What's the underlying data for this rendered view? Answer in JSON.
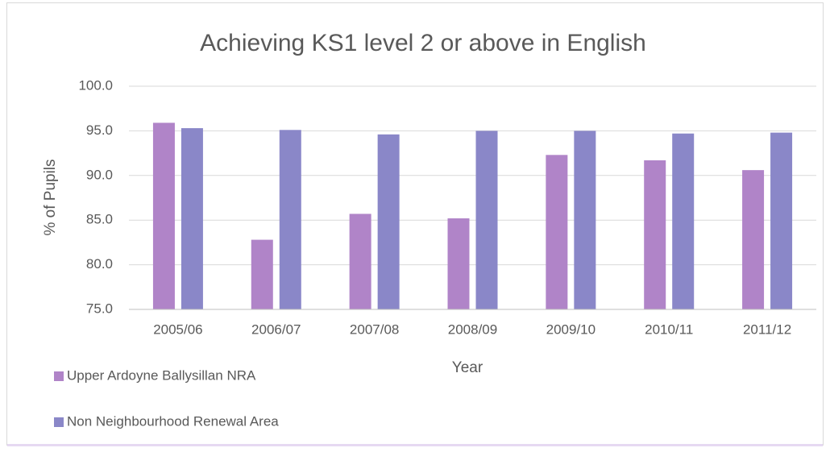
{
  "chart_data": {
    "type": "bar",
    "title": "Achieving KS1 level 2 or above in English",
    "x_label": "Year",
    "y_label": "% of Pupils",
    "categories": [
      "2005/06",
      "2006/07",
      "2007/08",
      "2008/09",
      "2009/10",
      "2010/11",
      "2011/12"
    ],
    "series": [
      {
        "name": "Upper Ardoyne Ballysillan NRA",
        "color": "#b084c8",
        "values": [
          95.9,
          82.8,
          85.7,
          85.2,
          92.3,
          91.7,
          90.6
        ]
      },
      {
        "name": "Non Neighbourhood Renewal Area",
        "color": "#8a87c8",
        "values": [
          95.3,
          95.1,
          94.6,
          95.0,
          95.0,
          94.7,
          94.8
        ]
      }
    ],
    "ylim": [
      75,
      100
    ],
    "yticks": [
      {
        "value": 75,
        "label": "75.0"
      },
      {
        "value": 80,
        "label": "80.0"
      },
      {
        "value": 85,
        "label": "85.0"
      },
      {
        "value": 90,
        "label": "90.0"
      },
      {
        "value": 95,
        "label": "95.0"
      },
      {
        "value": 100,
        "label": "100.0"
      }
    ],
    "grid": true,
    "legend": "bottom-left"
  }
}
